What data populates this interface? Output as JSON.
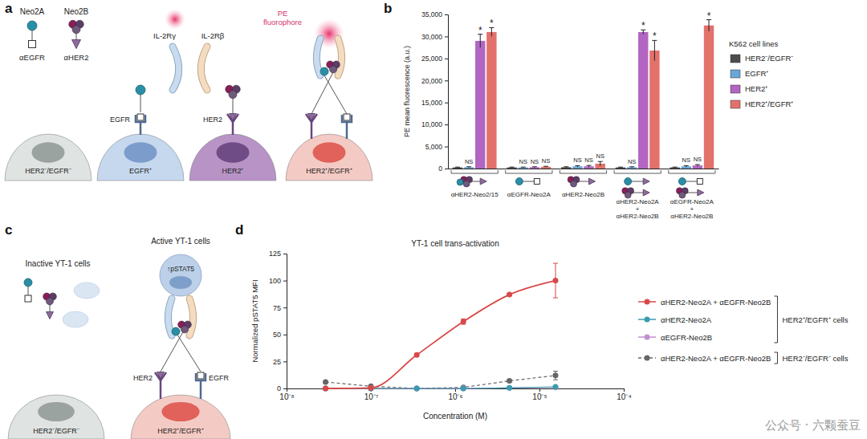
{
  "panel_labels": [
    "a",
    "b",
    "c",
    "d"
  ],
  "diagram_a": {
    "ligands": [
      {
        "name": "Neo2A",
        "binder": "αEGFR"
      },
      {
        "name": "Neo2B",
        "binder": "αHER2"
      }
    ],
    "receptors": [
      "IL-2Rγ",
      "IL-2Rβ"
    ],
    "fluorophore": "PE fluorophore",
    "cells": [
      {
        "label": "HER2⁻/EGFR⁻",
        "markers": []
      },
      {
        "label": "EGFR⁺",
        "markers": [
          "EGFR"
        ]
      },
      {
        "label": "HER2⁺",
        "markers": [
          "HER2"
        ]
      },
      {
        "label": "HER2⁺/EGFR⁺",
        "markers": []
      }
    ]
  },
  "diagram_c": {
    "inactive_label": "Inactive YT-1 cells",
    "active_label": "Active YT-1 cells",
    "signal": "↑pSTAT5",
    "cells": [
      {
        "label": "HER2⁻/EGFR⁻",
        "markers": []
      },
      {
        "label": "HER2⁺/EGFR⁺",
        "markers": [
          "HER2",
          "EGFR"
        ]
      }
    ]
  },
  "chart_data": [
    {
      "type": "bar",
      "ylabel": "PE mean fluorescence (a.u.)",
      "categories": [
        "αHER2-Neo2/15",
        "αEGFR-Neo2A",
        "αHER2-Neo2B",
        "αHER2-Neo2A + αHER2-Neo2B",
        "αEGFR-Neo2A + αHER2-Neo2B"
      ],
      "ylim": [
        0,
        35000
      ],
      "yticks": [
        0,
        {
          "value": 5000,
          "label": "5,000"
        },
        {
          "value": 10000,
          "label": "10,000"
        },
        {
          "value": 15000,
          "label": "15,000"
        },
        {
          "value": 20000,
          "label": "20,000"
        },
        {
          "value": 25000,
          "label": "25,000"
        },
        {
          "value": 30000,
          "label": "30,000"
        },
        {
          "value": 35000,
          "label": "35,000"
        }
      ],
      "grid": false,
      "legend": "right",
      "legend_title": "K562 cell lines",
      "series": [
        {
          "name": "HER2⁻/EGFR⁻",
          "color": "#4d4d4d",
          "values": [
            250,
            250,
            300,
            250,
            250
          ],
          "errors": [
            80,
            80,
            100,
            80,
            80
          ],
          "significance": [
            null,
            null,
            null,
            null,
            null
          ]
        },
        {
          "name": "EGFR⁺",
          "color": "#6aa6d8",
          "values": [
            300,
            250,
            500,
            300,
            500
          ],
          "errors": [
            100,
            80,
            150,
            100,
            150
          ],
          "significance": [
            "NS",
            "NS",
            "NS",
            "NS",
            "NS"
          ]
        },
        {
          "name": "HER2⁺",
          "color": "#b266c2",
          "values": [
            29000,
            300,
            500,
            31000,
            700
          ],
          "errors": [
            1500,
            100,
            200,
            500,
            200
          ],
          "significance": [
            "*",
            "NS",
            "NS",
            "*",
            "NS"
          ]
        },
        {
          "name": "HER2⁺/EGFR⁺",
          "color": "#e2716c",
          "values": [
            31000,
            400,
            1100,
            26800,
            32500
          ],
          "errors": [
            1000,
            100,
            500,
            2300,
            1300
          ],
          "significance": [
            "*",
            "NS",
            "NS",
            "*",
            "*"
          ]
        }
      ]
    },
    {
      "type": "line",
      "title": "YT-1 cell trans-activation",
      "xlabel": "Concentration (M)",
      "ylabel": "Normalized pSTAT5 MFI",
      "log": "x",
      "x": [
        2.9e-08,
        1e-07,
        3.5e-07,
        1.25e-06,
        4.4e-06,
        1.55e-05
      ],
      "xlim": [
        1e-08,
        0.0001
      ],
      "xticks": [
        {
          "value": 1e-08,
          "label": "10⁻⁸"
        },
        {
          "value": 1e-07,
          "label": "10⁻⁷"
        },
        {
          "value": 1e-06,
          "label": "10⁻⁶"
        },
        {
          "value": 1e-05,
          "label": "10⁻⁵"
        },
        {
          "value": 0.0001,
          "label": "10⁻⁴"
        }
      ],
      "ylim": [
        0,
        125
      ],
      "yticks": [
        0,
        25,
        50,
        75,
        100,
        125
      ],
      "grid": false,
      "legend": "right",
      "series": [
        {
          "name": "αHER2-Neo2A + αEGFR-Neo2B",
          "color": "#d94848",
          "marker": "circle",
          "line_style": "solid",
          "values": [
            0,
            0.5,
            31,
            62,
            87,
            100
          ],
          "errors": [
            0.5,
            0.5,
            1.5,
            2.5,
            1,
            16
          ]
        },
        {
          "name": "αHER2-Neo2A",
          "color": "#3a9bb0",
          "marker": "circle",
          "line_style": "solid",
          "values": [
            0,
            0,
            0,
            0,
            0.5,
            1.5
          ],
          "errors": [
            0,
            0,
            0,
            0,
            0,
            0.5
          ]
        },
        {
          "name": "αEGFR-Neo2B",
          "color": "#c48fd0",
          "marker": "circle",
          "line_style": "solid",
          "values": [
            0,
            0,
            0,
            0,
            0.5,
            1
          ],
          "errors": [
            0,
            0,
            0,
            0,
            0,
            0
          ]
        },
        {
          "name": "αHER2-Neo2A + αEGFR-Neo2B",
          "color": "#666666",
          "marker": "circle",
          "line_style": "dashed",
          "values": [
            6,
            2,
            0,
            1,
            7,
            12
          ],
          "errors": [
            0,
            0,
            0,
            0,
            1,
            4
          ]
        }
      ],
      "legend_groups": [
        {
          "label": "HER2⁺/EGFR⁺ cells",
          "members": [
            0,
            1,
            2
          ]
        },
        {
          "label": "HER2⁻/EGFR⁻ cells",
          "members": [
            3
          ]
        }
      ]
    }
  ],
  "watermark": "公众号 · 六颗蚕豆"
}
